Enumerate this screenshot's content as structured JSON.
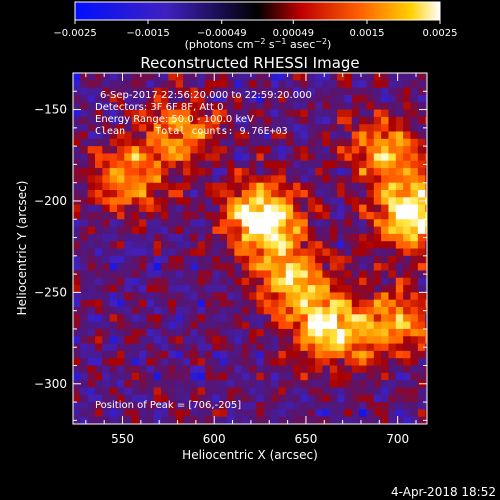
{
  "chart_data": {
    "type": "heatmap",
    "title": "Reconstructed RHESSI Image",
    "xlabel": "Heliocentric X (arcsec)",
    "ylabel": "Heliocentric Y (arcsec)",
    "xlim": [
      523,
      716
    ],
    "ylim": [
      -322,
      -130
    ],
    "x_ticks": [
      {
        "value": 550,
        "label": "550"
      },
      {
        "value": 600,
        "label": "600"
      },
      {
        "value": 650,
        "label": "650"
      },
      {
        "value": 700,
        "label": "700"
      }
    ],
    "y_ticks": [
      {
        "value": -150,
        "label": "−150"
      },
      {
        "value": -200,
        "label": "−200"
      },
      {
        "value": -250,
        "label": "−250"
      },
      {
        "value": -300,
        "label": "−300"
      }
    ],
    "colorbar": {
      "range": [
        -0.0025,
        0.0025
      ],
      "ticks": [
        {
          "value": -0.0025,
          "label": "−0.0025"
        },
        {
          "value": -0.0015,
          "label": "−0.0015"
        },
        {
          "value": -0.00049,
          "label": "−0.00049"
        },
        {
          "value": 0.00049,
          "label": "0.00049"
        },
        {
          "value": 0.0015,
          "label": "0.0015"
        },
        {
          "value": 0.0025,
          "label": "0.0025"
        }
      ],
      "unit_main": "(photons cm",
      "unit_exp1": "−2",
      "unit_mid": " s",
      "unit_exp2": "−1",
      "unit_end": " asec",
      "unit_exp3": "−2",
      "unit_close": ")"
    },
    "annotations": [
      "6-Sep-2017 22:56:20.000 to 22:59:20.000",
      "Detectors: 3F 6F 8F, Att 0",
      "Energy Range: 50.0 - 100.0 keV",
      "Clean     Total counts: 9.76E+03"
    ],
    "peak_label": "Position of Peak = [706,-205]",
    "sources": [
      {
        "x": 624,
        "y": -207,
        "peak": 1.0
      },
      {
        "x": 661,
        "y": -268,
        "peak": 0.9
      },
      {
        "x": 706,
        "y": -205,
        "peak": 1.0
      },
      {
        "x": 640,
        "y": -240,
        "peak": 0.7
      },
      {
        "x": 552,
        "y": -185,
        "peak": 0.65
      },
      {
        "x": 580,
        "y": -160,
        "peak": 0.55
      },
      {
        "x": 690,
        "y": -170,
        "peak": 0.6
      },
      {
        "x": 698,
        "y": -265,
        "peak": 0.6
      }
    ]
  },
  "footer_date": "4-Apr-2018 18:52"
}
